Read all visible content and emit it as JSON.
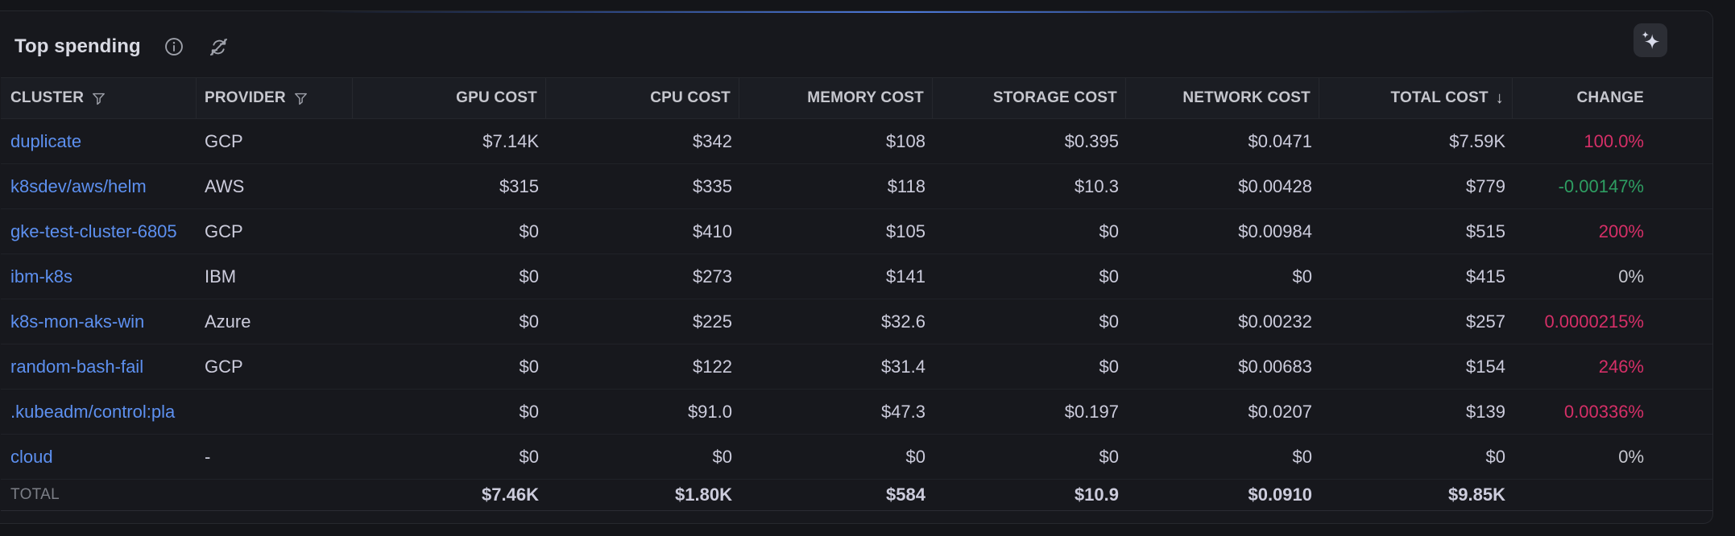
{
  "panel": {
    "title": "Top spending",
    "icons": [
      "info-circle-icon",
      "sync-disabled-icon",
      "sparkles-ai-icon",
      "filter-icon",
      "sort-descending-icon"
    ]
  },
  "table": {
    "sort_indicator": "↓",
    "columns": [
      {
        "label": "CLUSTER",
        "align": "left",
        "filter": true,
        "sort": null
      },
      {
        "label": "PROVIDER",
        "align": "left",
        "filter": true,
        "sort": null
      },
      {
        "label": "GPU COST",
        "align": "right",
        "filter": false,
        "sort": null
      },
      {
        "label": "CPU COST",
        "align": "right",
        "filter": false,
        "sort": null
      },
      {
        "label": "MEMORY COST",
        "align": "right",
        "filter": false,
        "sort": null
      },
      {
        "label": "STORAGE COST",
        "align": "right",
        "filter": false,
        "sort": null
      },
      {
        "label": "NETWORK COST",
        "align": "right",
        "filter": false,
        "sort": null
      },
      {
        "label": "TOTAL COST",
        "align": "right",
        "filter": false,
        "sort": "desc"
      },
      {
        "label": "CHANGE",
        "align": "right",
        "filter": false,
        "sort": null
      }
    ],
    "rows": [
      {
        "cluster": "duplicate",
        "provider": "GCP",
        "gpu": "$7.14K",
        "cpu": "$342",
        "memory": "$108",
        "storage": "$0.395",
        "network": "$0.0471",
        "total": "$7.59K",
        "change": "100.0%",
        "change_color": "red"
      },
      {
        "cluster": "k8sdev/aws/helm",
        "provider": "AWS",
        "gpu": "$315",
        "cpu": "$335",
        "memory": "$118",
        "storage": "$10.3",
        "network": "$0.00428",
        "total": "$779",
        "change": "-0.00147%",
        "change_color": "green"
      },
      {
        "cluster": "gke-test-cluster-6805",
        "provider": "GCP",
        "gpu": "$0",
        "cpu": "$410",
        "memory": "$105",
        "storage": "$0",
        "network": "$0.00984",
        "total": "$515",
        "change": "200%",
        "change_color": "red"
      },
      {
        "cluster": "ibm-k8s",
        "provider": "IBM",
        "gpu": "$0",
        "cpu": "$273",
        "memory": "$141",
        "storage": "$0",
        "network": "$0",
        "total": "$415",
        "change": "0%",
        "change_color": "neutral"
      },
      {
        "cluster": "k8s-mon-aks-win",
        "provider": "Azure",
        "gpu": "$0",
        "cpu": "$225",
        "memory": "$32.6",
        "storage": "$0",
        "network": "$0.00232",
        "total": "$257",
        "change": "0.0000215%",
        "change_color": "red"
      },
      {
        "cluster": "random-bash-fail",
        "provider": "GCP",
        "gpu": "$0",
        "cpu": "$122",
        "memory": "$31.4",
        "storage": "$0",
        "network": "$0.00683",
        "total": "$154",
        "change": "246%",
        "change_color": "red"
      },
      {
        "cluster": ".kubeadm/control:pla",
        "provider": "",
        "gpu": "$0",
        "cpu": "$91.0",
        "memory": "$47.3",
        "storage": "$0.197",
        "network": "$0.0207",
        "total": "$139",
        "change": "0.00336%",
        "change_color": "red"
      },
      {
        "cluster": "cloud",
        "provider": "-",
        "gpu": "$0",
        "cpu": "$0",
        "memory": "$0",
        "storage": "$0",
        "network": "$0",
        "total": "$0",
        "change": "0%",
        "change_color": "neutral"
      }
    ],
    "footer": {
      "label": "TOTAL",
      "gpu": "$7.46K",
      "cpu": "$1.80K",
      "memory": "$584",
      "storage": "$10.9",
      "network": "$0.0910",
      "total": "$9.85K",
      "change": ""
    }
  },
  "palette": {
    "link_blue": "#5d90f0",
    "change_red": "#d52f67",
    "change_green": "#2e9e62",
    "change_neutral": "#c6c7ce",
    "panel_bg": "#17181d",
    "accent_blue": "#4d79d9"
  }
}
